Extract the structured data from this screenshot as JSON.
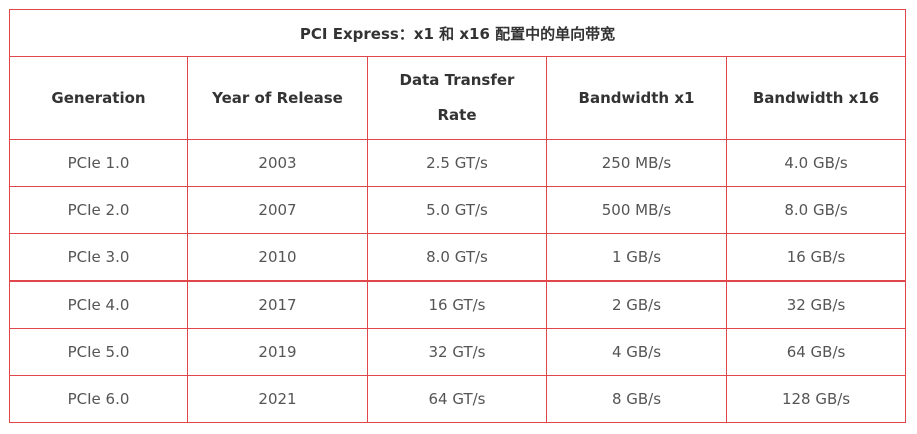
{
  "table": {
    "title": "PCI Express：x1 和 x16 配置中的单向带宽",
    "headers": [
      "Generation",
      "Year of Release",
      "Data Transfer Rate",
      "Bandwidth x1",
      "Bandwidth x16"
    ],
    "rows": [
      [
        "PCIe 1.0",
        "2003",
        "2.5 GT/s",
        "250 MB/s",
        "4.0 GB/s"
      ],
      [
        "PCIe 2.0",
        "2007",
        "5.0 GT/s",
        "500 MB/s",
        "8.0 GB/s"
      ],
      [
        "PCIe 3.0",
        "2010",
        "8.0 GT/s",
        "1 GB/s",
        "16 GB/s"
      ],
      [
        "PCIe 4.0",
        "2017",
        "16 GT/s",
        "2 GB/s",
        "32 GB/s"
      ],
      [
        "PCIe 5.0",
        "2019",
        "32 GT/s",
        "4 GB/s",
        "64 GB/s"
      ],
      [
        "PCIe 6.0",
        "2021",
        "64 GT/s",
        "8 GB/s",
        "128 GB/s"
      ]
    ]
  },
  "colors": {
    "border": "#e0474c",
    "header_text": "#333333",
    "body_text": "#555555"
  }
}
